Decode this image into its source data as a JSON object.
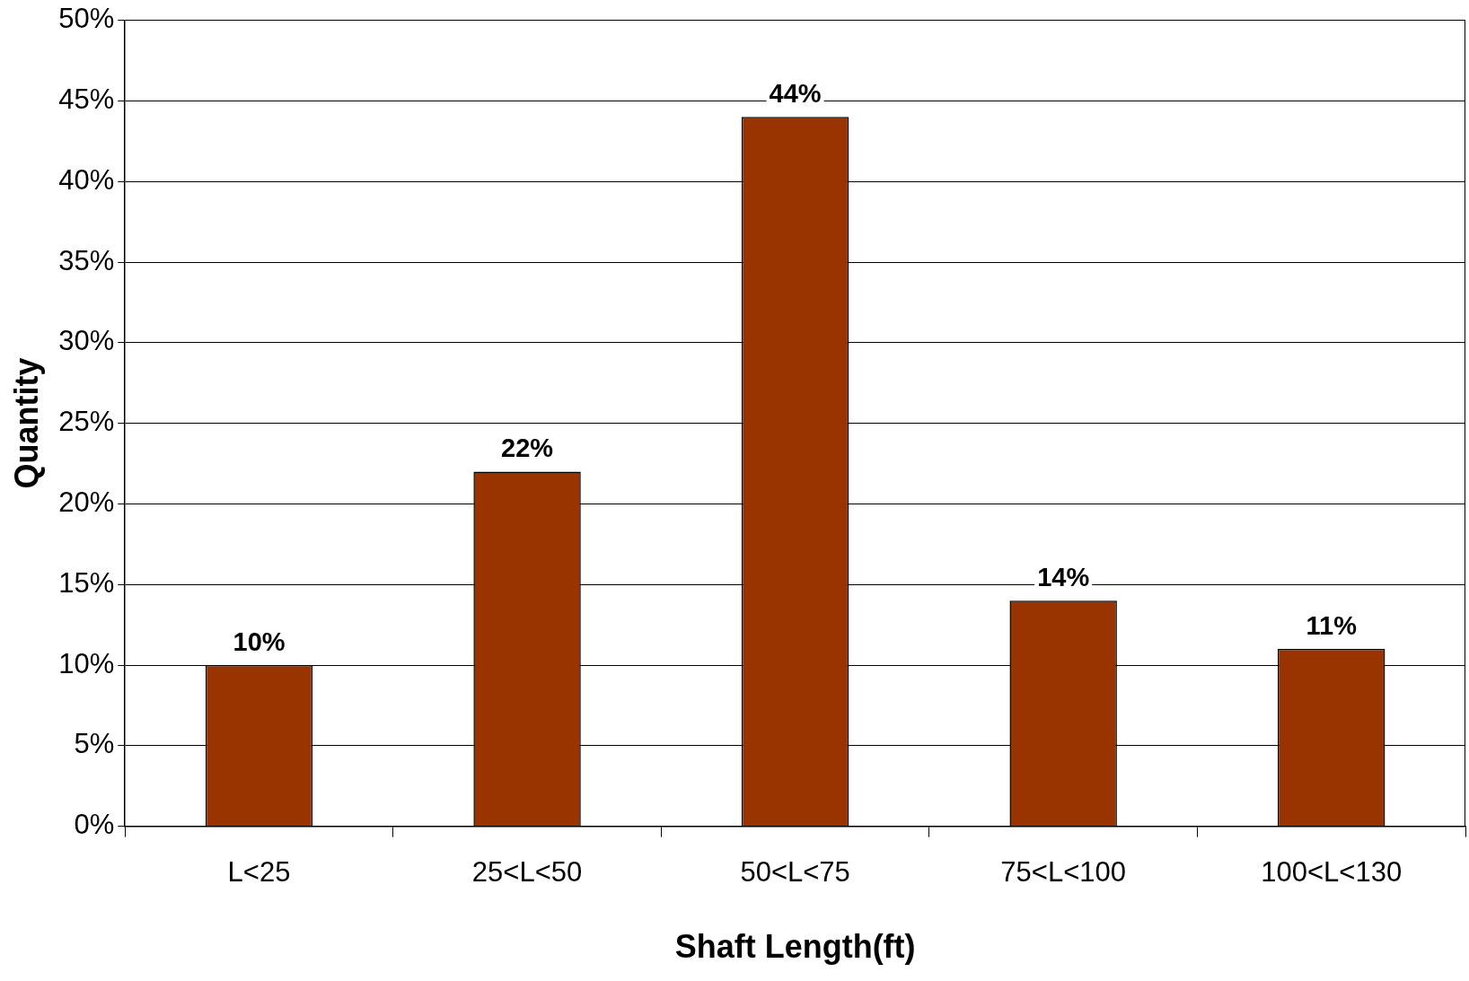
{
  "chart_data": {
    "type": "bar",
    "xlabel": "Shaft Length(ft)",
    "ylabel": "Quantity",
    "categories": [
      "L<25",
      "25<L<50",
      "50<L<75",
      "75<L<100",
      "100<L<130"
    ],
    "values": [
      10,
      22,
      44,
      14,
      11
    ],
    "value_labels": [
      "10%",
      "22%",
      "44%",
      "14%",
      "11%"
    ],
    "color": "#993300",
    "ylim": [
      0,
      50
    ],
    "yticks": [
      {
        "value": 0,
        "label": "0%"
      },
      {
        "value": 5,
        "label": "5%"
      },
      {
        "value": 10,
        "label": "10%"
      },
      {
        "value": 15,
        "label": "15%"
      },
      {
        "value": 20,
        "label": "20%"
      },
      {
        "value": 25,
        "label": "25%"
      },
      {
        "value": 30,
        "label": "30%"
      },
      {
        "value": 35,
        "label": "35%"
      },
      {
        "value": 40,
        "label": "40%"
      },
      {
        "value": 45,
        "label": "45%"
      },
      {
        "value": 50,
        "label": "50%"
      }
    ],
    "grid": "y",
    "legend": false
  }
}
